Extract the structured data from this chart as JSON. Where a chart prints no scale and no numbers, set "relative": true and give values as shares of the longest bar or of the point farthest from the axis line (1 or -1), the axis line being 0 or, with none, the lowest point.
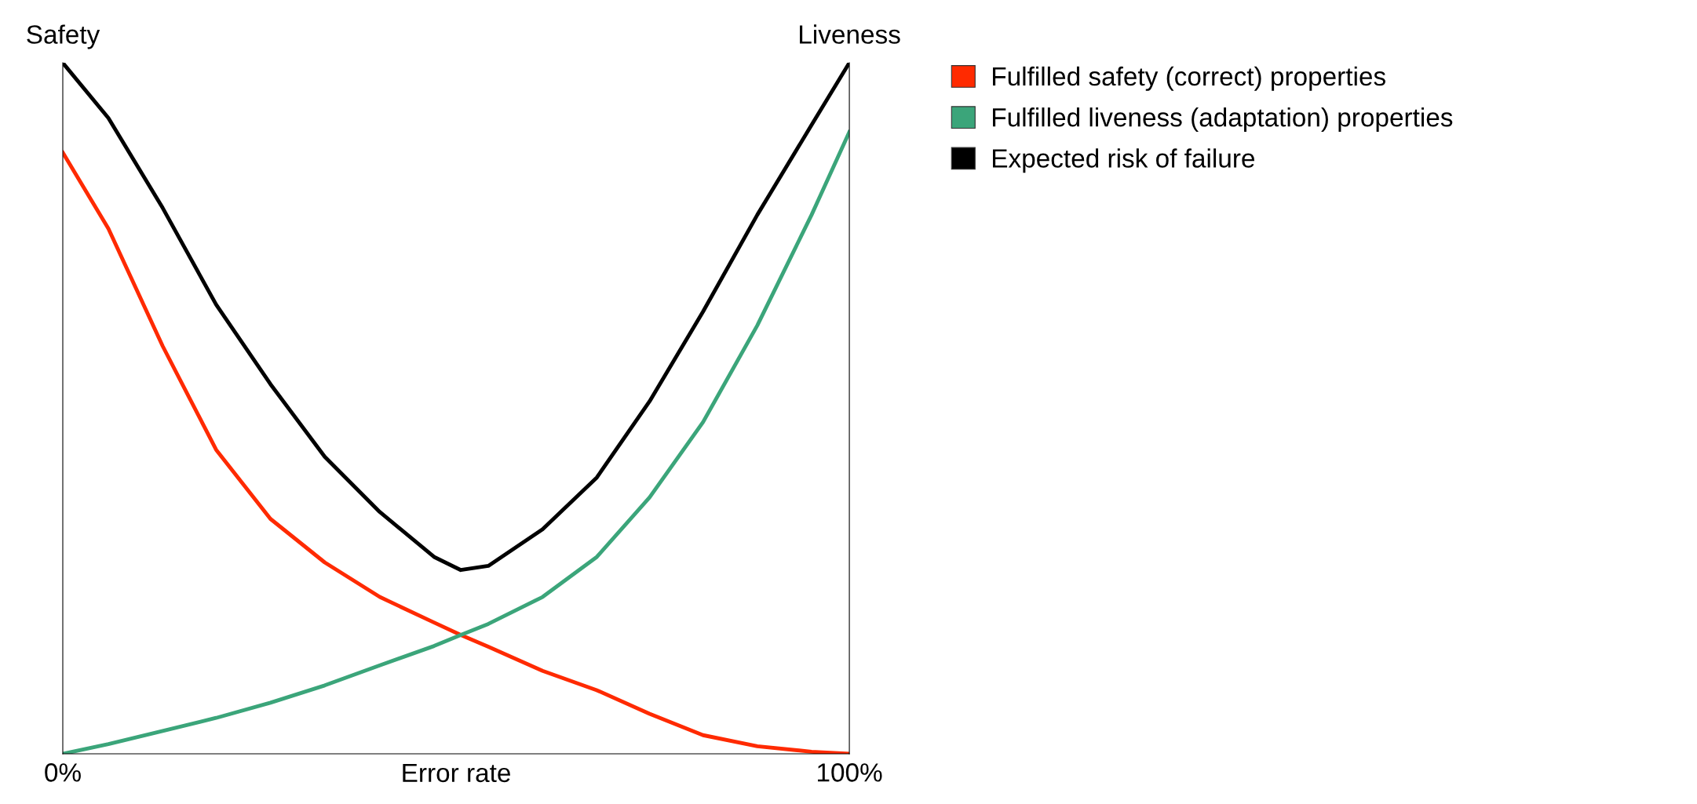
{
  "chart_data": {
    "type": "line",
    "relative": true,
    "xlabel": "Error rate",
    "ylabel": "Safety",
    "y2label": "Liveness",
    "xlim": [
      0,
      100
    ],
    "xticks": [
      {
        "value": 0,
        "label": "0%"
      },
      {
        "value": 100,
        "label": "100%"
      }
    ],
    "x": [
      0,
      5.8,
      12.7,
      19.5,
      26.4,
      33.3,
      40.3,
      47.2,
      50.6,
      54.1,
      61,
      67.9,
      74.6,
      81.4,
      88.3,
      95.2,
      100
    ],
    "series": [
      {
        "name": "Fulfilled safety (correct) properties",
        "color": "#ff2a00",
        "values": [
          0.87,
          0.76,
          0.59,
          0.44,
          0.34,
          0.277,
          0.227,
          0.19,
          0.172,
          0.155,
          0.12,
          0.092,
          0.058,
          0.027,
          0.011,
          0.003,
          0
        ]
      },
      {
        "name": "Fulfilled liveness (adaptation) properties",
        "color": "#3ba57a",
        "values": [
          0,
          0.014,
          0.033,
          0.052,
          0.074,
          0.099,
          0.128,
          0.156,
          0.172,
          0.188,
          0.227,
          0.285,
          0.371,
          0.48,
          0.62,
          0.78,
          0.9
        ]
      },
      {
        "name": "Expected risk of failure",
        "color": "#000000",
        "values": [
          1.0,
          0.92,
          0.79,
          0.65,
          0.535,
          0.43,
          0.35,
          0.285,
          0.266,
          0.272,
          0.325,
          0.4,
          0.51,
          0.64,
          0.78,
          0.91,
          1.0
        ]
      }
    ],
    "legend": "right",
    "grid": false,
    "marker": "none",
    "line_style": "solid"
  }
}
